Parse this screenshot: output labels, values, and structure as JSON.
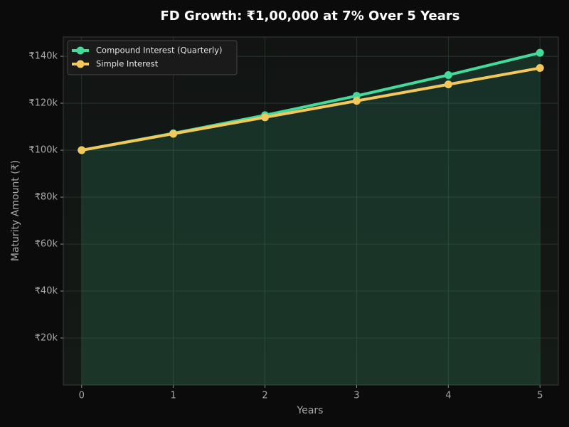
{
  "chart_data": {
    "type": "line",
    "title": "FD Growth: ₹1,00,000 at 7% Over 5 Years",
    "x_label": "Years",
    "y_label": "Maturity Amount (₹)",
    "x": [
      0,
      1,
      2,
      3,
      4,
      5
    ],
    "series": [
      {
        "name": "Compound Interest (Quarterly)",
        "color": "#45d99a",
        "values": [
          100000,
          107186,
          114888,
          123144,
          131993,
          141478
        ]
      },
      {
        "name": "Simple Interest",
        "color": "#f2c75c",
        "values": [
          100000,
          107000,
          114000,
          121000,
          128000,
          135000
        ]
      }
    ],
    "xlim": [
      -0.2,
      5.2
    ],
    "xticks": [
      0,
      1,
      2,
      3,
      4,
      5
    ],
    "ylim": [
      0,
      148200
    ],
    "yticks": [
      {
        "value": 20000,
        "label": "₹20k"
      },
      {
        "value": 40000,
        "label": "₹40k"
      },
      {
        "value": 60000,
        "label": "₹60k"
      },
      {
        "value": 80000,
        "label": "₹80k"
      },
      {
        "value": 100000,
        "label": "₹100k"
      },
      {
        "value": 120000,
        "label": "₹120k"
      },
      {
        "value": 140000,
        "label": "₹140k"
      }
    ],
    "grid": true,
    "legend": "upper-left"
  }
}
